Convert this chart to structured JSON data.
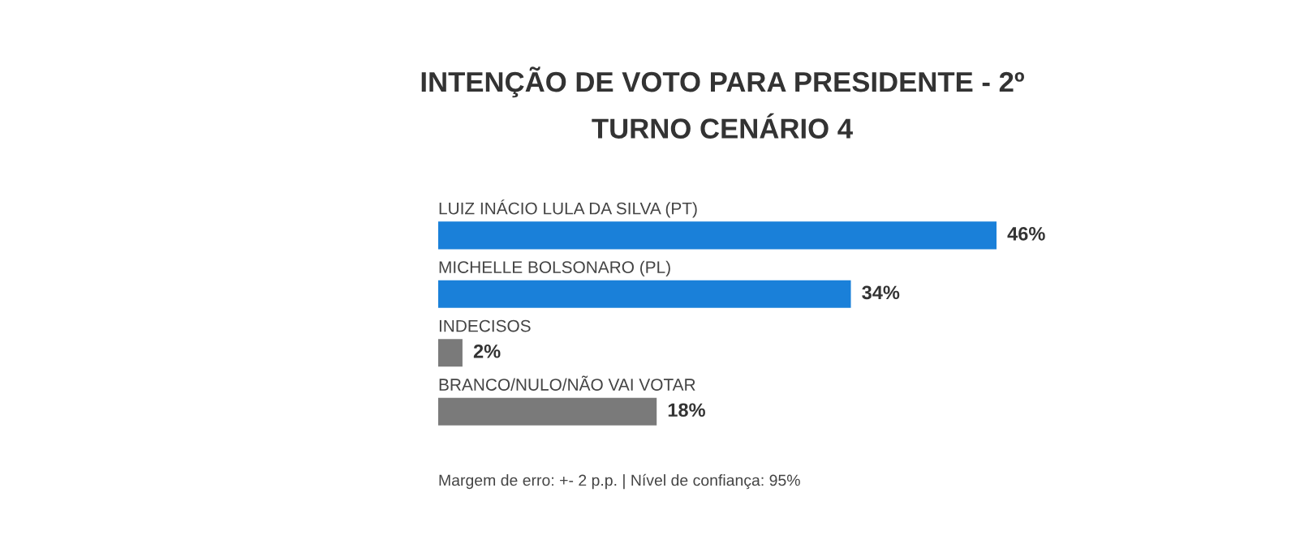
{
  "chart_data": {
    "type": "bar",
    "orientation": "horizontal",
    "title": "INTENÇÃO DE VOTO PARA PRESIDENTE - 2º\nTURNO CENÁRIO 4",
    "categories": [
      "LUIZ INÁCIO LULA DA SILVA (PT)",
      "MICHELLE BOLSONARO (PL)",
      "INDECISOS",
      "BRANCO/NULO/NÃO VAI VOTAR"
    ],
    "values": [
      46,
      34,
      2,
      18
    ],
    "value_labels": [
      "46%",
      "34%",
      "2%",
      "18%"
    ],
    "colors": [
      "#1a80d9",
      "#1a80d9",
      "#7a7a7a",
      "#7a7a7a"
    ],
    "annotations": [
      "Margem de erro: +- 2 p.p. | Nível de confiança: 95%"
    ]
  }
}
